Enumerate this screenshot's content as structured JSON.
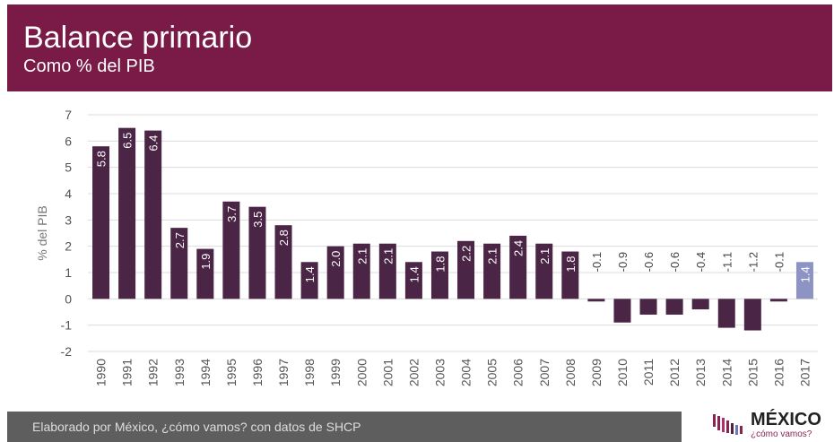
{
  "header": {
    "title": "Balance primario",
    "subtitle": "Como % del PIB"
  },
  "footer": {
    "source": "Elaborado por México, ¿cómo vamos? con datos de SHCP"
  },
  "logo": {
    "name": "MÉXICO",
    "tagline": "¿cómo vamos?"
  },
  "colors": {
    "header_bg": "#7a1b47",
    "bar": "#4b2545",
    "bar_highlight": "#8d94c4",
    "footer_bg": "#5e5e5e"
  },
  "chart_data": {
    "type": "bar",
    "title": "Balance primario",
    "subtitle": "Como % del PIB",
    "xlabel": "",
    "ylabel": "% del PIB",
    "ylim": [
      -2,
      7
    ],
    "yticks": [
      -2,
      -1,
      0,
      1,
      2,
      3,
      4,
      5,
      6,
      7
    ],
    "grid": true,
    "categories": [
      "1990",
      "1991",
      "1992",
      "1993",
      "1994",
      "1995",
      "1996",
      "1997",
      "1998",
      "1999",
      "2000",
      "2001",
      "2002",
      "2003",
      "2004",
      "2005",
      "2006",
      "2007",
      "2008",
      "2009",
      "2010",
      "2011",
      "2012",
      "2013",
      "2014",
      "2015",
      "2016",
      "2017"
    ],
    "values": [
      5.8,
      6.5,
      6.4,
      2.7,
      1.9,
      3.7,
      3.5,
      2.8,
      1.4,
      2.0,
      2.1,
      2.1,
      1.4,
      1.8,
      2.2,
      2.1,
      2.4,
      2.1,
      1.8,
      -0.1,
      -0.9,
      -0.6,
      -0.6,
      -0.4,
      -1.1,
      -1.2,
      -0.1,
      1.4
    ],
    "labels": [
      "5.8",
      "6.5",
      "6.4",
      "2.7",
      "1.9",
      "3.7",
      "3.5",
      "2.8",
      "1.4",
      "2.0",
      "2.1",
      "2.1",
      "1.4",
      "1.8",
      "2.2",
      "2.1",
      "2.4",
      "2.1",
      "1.8",
      "-0.1",
      "-0.9",
      "-0.6",
      "-0.6",
      "-0.4",
      "-1.1",
      "-1.2",
      "-0.1",
      "1.4"
    ],
    "highlight_index": 27
  }
}
